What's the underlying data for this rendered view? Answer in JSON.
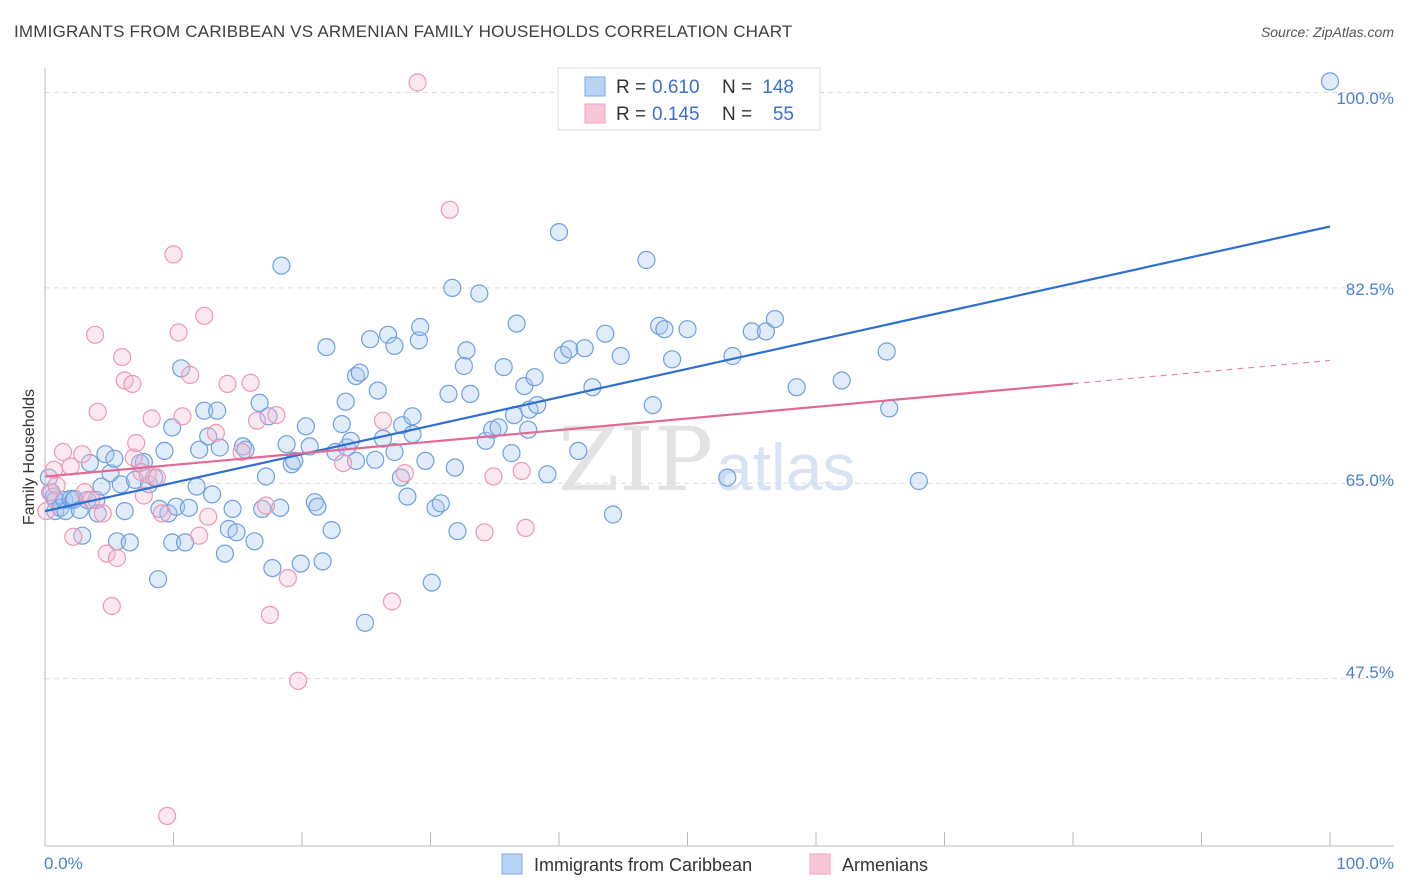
{
  "title": "IMMIGRANTS FROM CARIBBEAN VS ARMENIAN FAMILY HOUSEHOLDS CORRELATION CHART",
  "source": "Source: ZipAtlas.com",
  "watermark": {
    "zip": "ZIP",
    "atlas": "atlas"
  },
  "legend": {
    "r_label": "R =",
    "n_label": "N =",
    "series1": {
      "r": "0.610",
      "n": "148"
    },
    "series2": {
      "r": "0.145",
      "n": "55"
    }
  },
  "chart_data": {
    "type": "scatter",
    "title": "IMMIGRANTS FROM CARIBBEAN VS ARMENIAN FAMILY HOUSEHOLDS CORRELATION CHART",
    "xlabel": "",
    "ylabel": "Family Households",
    "xlim": [
      0,
      100
    ],
    "ylim": [
      32.5,
      102.2
    ],
    "x_tick_labels": [
      "0.0%",
      "100.0%"
    ],
    "y_ticks": [
      47.5,
      65.0,
      82.5,
      100.0
    ],
    "y_tick_labels": [
      "47.5%",
      "65.0%",
      "82.5%",
      "100.0%"
    ],
    "grid": true,
    "legend_position": "top-center",
    "colors": {
      "series1": "#7aaae8",
      "series1_line": "#2f6fd1",
      "series2": "#f2a3bd",
      "series2_line": "#e06a95",
      "tick": "#4a7fcf"
    },
    "series": [
      {
        "name": "Immigrants from Caribbean",
        "r": 0.61,
        "n": 148,
        "trend": {
          "x0": 0,
          "y0": 62.5,
          "x1": 100,
          "y1": 88.0
        },
        "points": [
          [
            0.3,
            65.5
          ],
          [
            0.5,
            64.2
          ],
          [
            0.7,
            63.8
          ],
          [
            0.8,
            63.5
          ],
          [
            0.8,
            62.5
          ],
          [
            1.2,
            62.8
          ],
          [
            1.5,
            63.5
          ],
          [
            1.6,
            62.5
          ],
          [
            2.0,
            63.6
          ],
          [
            2.2,
            63.5
          ],
          [
            2.3,
            63.6
          ],
          [
            2.7,
            62.6
          ],
          [
            2.9,
            60.3
          ],
          [
            3.3,
            63.5
          ],
          [
            3.5,
            66.8
          ],
          [
            4.0,
            63.5
          ],
          [
            4.1,
            62.3
          ],
          [
            4.4,
            64.7
          ],
          [
            4.7,
            67.6
          ],
          [
            5.1,
            65.9
          ],
          [
            5.4,
            67.2
          ],
          [
            5.6,
            59.8
          ],
          [
            5.9,
            64.9
          ],
          [
            6.2,
            62.5
          ],
          [
            6.6,
            59.7
          ],
          [
            7.0,
            65.3
          ],
          [
            7.4,
            66.8
          ],
          [
            7.7,
            66.9
          ],
          [
            8.1,
            64.9
          ],
          [
            8.5,
            65.5
          ],
          [
            8.8,
            56.4
          ],
          [
            8.9,
            62.7
          ],
          [
            9.3,
            67.9
          ],
          [
            9.6,
            62.3
          ],
          [
            9.9,
            59.7
          ],
          [
            9.9,
            70.0
          ],
          [
            10.2,
            62.9
          ],
          [
            10.6,
            75.3
          ],
          [
            10.9,
            59.7
          ],
          [
            11.2,
            62.8
          ],
          [
            11.8,
            64.7
          ],
          [
            12.0,
            68.0
          ],
          [
            12.4,
            71.5
          ],
          [
            12.7,
            69.2
          ],
          [
            13.0,
            64.0
          ],
          [
            13.4,
            71.5
          ],
          [
            13.6,
            68.2
          ],
          [
            14.0,
            58.7
          ],
          [
            14.3,
            60.9
          ],
          [
            14.6,
            62.7
          ],
          [
            14.9,
            60.6
          ],
          [
            15.4,
            68.3
          ],
          [
            15.6,
            68.0
          ],
          [
            16.3,
            59.8
          ],
          [
            16.7,
            72.2
          ],
          [
            16.9,
            62.7
          ],
          [
            17.2,
            65.6
          ],
          [
            17.4,
            71.0
          ],
          [
            17.7,
            57.4
          ],
          [
            18.3,
            62.8
          ],
          [
            18.4,
            84.5
          ],
          [
            18.8,
            68.5
          ],
          [
            19.2,
            66.7
          ],
          [
            19.4,
            67.0
          ],
          [
            19.9,
            57.8
          ],
          [
            20.3,
            70.1
          ],
          [
            20.6,
            68.3
          ],
          [
            21.0,
            63.3
          ],
          [
            21.2,
            62.9
          ],
          [
            21.6,
            58.0
          ],
          [
            21.9,
            77.2
          ],
          [
            22.3,
            60.8
          ],
          [
            22.6,
            67.8
          ],
          [
            23.1,
            70.3
          ],
          [
            23.4,
            72.3
          ],
          [
            23.5,
            68.2
          ],
          [
            23.8,
            68.8
          ],
          [
            24.2,
            74.6
          ],
          [
            24.2,
            67.0
          ],
          [
            24.5,
            74.9
          ],
          [
            24.9,
            52.5
          ],
          [
            25.3,
            77.9
          ],
          [
            25.7,
            67.1
          ],
          [
            25.9,
            73.3
          ],
          [
            26.3,
            69.0
          ],
          [
            26.7,
            78.3
          ],
          [
            27.2,
            77.3
          ],
          [
            27.2,
            67.8
          ],
          [
            27.7,
            65.5
          ],
          [
            27.8,
            70.2
          ],
          [
            28.2,
            63.8
          ],
          [
            28.6,
            69.4
          ],
          [
            28.6,
            71.0
          ],
          [
            29.1,
            77.8
          ],
          [
            29.2,
            79.0
          ],
          [
            29.6,
            67.0
          ],
          [
            30.1,
            56.1
          ],
          [
            30.4,
            62.8
          ],
          [
            30.8,
            63.2
          ],
          [
            31.4,
            73.0
          ],
          [
            31.7,
            82.5
          ],
          [
            31.9,
            66.4
          ],
          [
            32.1,
            60.7
          ],
          [
            32.6,
            75.5
          ],
          [
            32.8,
            76.9
          ],
          [
            33.1,
            73.0
          ],
          [
            33.8,
            82.0
          ],
          [
            34.3,
            68.8
          ],
          [
            34.8,
            69.8
          ],
          [
            35.3,
            70.0
          ],
          [
            35.7,
            75.4
          ],
          [
            36.3,
            67.7
          ],
          [
            36.5,
            71.1
          ],
          [
            36.7,
            79.3
          ],
          [
            37.3,
            73.7
          ],
          [
            37.6,
            69.8
          ],
          [
            37.7,
            71.6
          ],
          [
            38.1,
            74.5
          ],
          [
            38.3,
            72.0
          ],
          [
            39.1,
            65.8
          ],
          [
            40.0,
            87.5
          ],
          [
            40.3,
            76.5
          ],
          [
            40.8,
            77.0
          ],
          [
            41.5,
            67.9
          ],
          [
            42.0,
            77.1
          ],
          [
            42.6,
            73.6
          ],
          [
            43.6,
            78.4
          ],
          [
            44.2,
            62.2
          ],
          [
            44.8,
            76.4
          ],
          [
            46.8,
            85.0
          ],
          [
            47.3,
            72.0
          ],
          [
            47.8,
            79.1
          ],
          [
            48.2,
            78.8
          ],
          [
            48.8,
            76.1
          ],
          [
            50.0,
            78.8
          ],
          [
            53.1,
            65.5
          ],
          [
            53.5,
            76.4
          ],
          [
            55.0,
            78.6
          ],
          [
            56.1,
            78.6
          ],
          [
            56.8,
            79.7
          ],
          [
            58.5,
            73.6
          ],
          [
            62.0,
            74.2
          ],
          [
            65.5,
            76.8
          ],
          [
            65.7,
            71.7
          ],
          [
            68.0,
            65.2
          ],
          [
            100.0,
            101.0
          ]
        ]
      },
      {
        "name": "Armenians",
        "r": 0.145,
        "n": 55,
        "trend": {
          "x0": 0,
          "y0": 65.6,
          "x1": 100,
          "y1": 76.0,
          "solid_until_x": 80
        },
        "points": [
          [
            0.1,
            62.5
          ],
          [
            0.4,
            64.2
          ],
          [
            0.7,
            66.2
          ],
          [
            0.9,
            64.8
          ],
          [
            1.4,
            67.8
          ],
          [
            2.0,
            66.5
          ],
          [
            2.2,
            60.2
          ],
          [
            2.9,
            67.6
          ],
          [
            3.1,
            64.2
          ],
          [
            3.6,
            63.5
          ],
          [
            3.9,
            78.3
          ],
          [
            4.1,
            71.4
          ],
          [
            4.5,
            62.3
          ],
          [
            4.8,
            58.7
          ],
          [
            5.2,
            54.0
          ],
          [
            5.6,
            58.3
          ],
          [
            6.0,
            76.3
          ],
          [
            6.2,
            74.2
          ],
          [
            6.8,
            73.9
          ],
          [
            6.9,
            67.3
          ],
          [
            7.1,
            68.6
          ],
          [
            7.5,
            66.0
          ],
          [
            7.7,
            63.9
          ],
          [
            8.0,
            65.8
          ],
          [
            8.3,
            70.8
          ],
          [
            8.7,
            65.5
          ],
          [
            9.1,
            62.3
          ],
          [
            9.5,
            35.2
          ],
          [
            10.0,
            85.5
          ],
          [
            10.4,
            78.5
          ],
          [
            10.7,
            71.0
          ],
          [
            11.3,
            74.7
          ],
          [
            12.0,
            60.3
          ],
          [
            12.4,
            80.0
          ],
          [
            12.7,
            62.0
          ],
          [
            13.3,
            69.5
          ],
          [
            14.2,
            73.9
          ],
          [
            15.3,
            67.8
          ],
          [
            16.0,
            74.0
          ],
          [
            16.5,
            70.6
          ],
          [
            17.2,
            63.0
          ],
          [
            17.5,
            53.2
          ],
          [
            18.0,
            71.1
          ],
          [
            18.9,
            56.5
          ],
          [
            19.7,
            47.3
          ],
          [
            23.2,
            66.8
          ],
          [
            26.3,
            70.6
          ],
          [
            27.0,
            54.4
          ],
          [
            28.0,
            65.9
          ],
          [
            29.0,
            100.9
          ],
          [
            31.5,
            89.5
          ],
          [
            34.2,
            60.6
          ],
          [
            34.9,
            65.6
          ],
          [
            37.1,
            66.1
          ],
          [
            37.4,
            61.0
          ]
        ]
      }
    ]
  },
  "axes": {
    "ylabel": "Family Households",
    "x_left": "0.0%",
    "x_right": "100.0%",
    "y_ticks": [
      "100.0%",
      "82.5%",
      "65.0%",
      "47.5%"
    ]
  },
  "bottom_legend": {
    "series1": "Immigrants from Caribbean",
    "series2": "Armenians"
  }
}
